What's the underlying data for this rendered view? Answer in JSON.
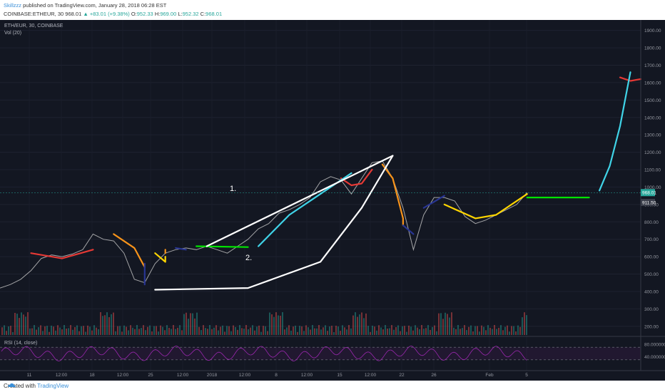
{
  "header": {
    "author": "Skillzzz",
    "published_text": "published on TradingView.com, January 28, 2018 06:28 EST",
    "symbol_line": "COINBASE:ETHEUR, 30",
    "price": "968.01",
    "change_arrow": "▲",
    "change": "+83.01 (+9.38%)",
    "o_label": "O:",
    "o_value": "952.33",
    "h_label": "H:",
    "h_value": "969.00",
    "l_label": "L:",
    "l_value": "952.32",
    "c_label": "C:",
    "c_value": "968.01"
  },
  "chart_panel": {
    "title": "ETH/EUR, 30, COINBASE",
    "vol_label": "Vol (20)",
    "rsi_label": "RSI (14, close)"
  },
  "annotations": {
    "label1": "1.",
    "label2": "2."
  },
  "footer": {
    "created_with": "Created with",
    "brand": "TradingView"
  },
  "colors": {
    "background": "#131722",
    "price_line": "#c8c8c8",
    "red": "#e53935",
    "orange": "#f7931a",
    "blue": "#283593",
    "yellow": "#ffd600",
    "green": "#00e400",
    "cyan": "#40d4e8",
    "white": "#ffffff",
    "rsi": "#9c27b0",
    "price_label": "#26a69a"
  },
  "chart_data": {
    "type": "line",
    "title": "ETH/EUR, 30, COINBASE",
    "y_axis": {
      "ticks": [
        200,
        300,
        400,
        500,
        600,
        700,
        800,
        900,
        1000,
        1100,
        1200,
        1300,
        1400,
        1500,
        1600,
        1700,
        1800,
        1900
      ],
      "range": [
        150,
        1960
      ],
      "scale": "linear"
    },
    "x_axis": {
      "ticks": [
        "11",
        "12:00",
        "18",
        "12:00",
        "25",
        "12:00",
        "2018",
        "12:00",
        "8",
        "12:00",
        "15",
        "12:00",
        "22",
        "26",
        "Feb",
        "5"
      ],
      "range": [
        "2017-12-08",
        "2018-02-08"
      ]
    },
    "current_price_label": "968.01",
    "second_price_label": "911.50",
    "price_series": {
      "name": "ETH/EUR",
      "x": [
        "2017-12-08",
        "2017-12-09",
        "2017-12-10",
        "2017-12-11",
        "2017-12-12",
        "2017-12-13",
        "2017-12-14",
        "2017-12-15",
        "2017-12-16",
        "2017-12-17",
        "2017-12-18",
        "2017-12-19",
        "2017-12-20",
        "2017-12-21",
        "2017-12-22",
        "2017-12-23",
        "2017-12-24",
        "2017-12-25",
        "2017-12-26",
        "2017-12-27",
        "2017-12-28",
        "2017-12-29",
        "2017-12-30",
        "2017-12-31",
        "2018-01-01",
        "2018-01-02",
        "2018-01-03",
        "2018-01-04",
        "2018-01-05",
        "2018-01-06",
        "2018-01-07",
        "2018-01-08",
        "2018-01-09",
        "2018-01-10",
        "2018-01-11",
        "2018-01-12",
        "2018-01-13",
        "2018-01-14",
        "2018-01-15",
        "2018-01-16",
        "2018-01-17",
        "2018-01-18",
        "2018-01-19",
        "2018-01-20",
        "2018-01-21",
        "2018-01-22",
        "2018-01-23",
        "2018-01-24",
        "2018-01-25",
        "2018-01-26",
        "2018-01-27",
        "2018-01-28"
      ],
      "y": [
        420,
        440,
        470,
        520,
        590,
        610,
        600,
        615,
        640,
        730,
        700,
        690,
        620,
        470,
        450,
        560,
        620,
        640,
        650,
        640,
        660,
        640,
        620,
        660,
        700,
        760,
        790,
        850,
        870,
        900,
        940,
        1030,
        1060,
        1040,
        960,
        1050,
        1140,
        1150,
        1050,
        880,
        640,
        840,
        940,
        940,
        920,
        830,
        790,
        810,
        840,
        870,
        900,
        968
      ]
    },
    "volume_series": {
      "name": "Vol (20)"
    },
    "rsi": {
      "name": "RSI (14, close)",
      "levels": [
        70,
        30
      ],
      "ticks": [
        80,
        40
      ]
    },
    "drawings": [
      {
        "color": "red",
        "points": [
          [
            "2017-12-11",
            620
          ],
          [
            "2017-12-14",
            590
          ],
          [
            "2017-12-17",
            640
          ]
        ]
      },
      {
        "color": "red",
        "points": [
          [
            "2018-01-10",
            1050
          ],
          [
            "2018-01-11",
            1010
          ],
          [
            "2018-01-12",
            1020
          ],
          [
            "2018-01-13",
            1100
          ]
        ]
      },
      {
        "color": "red",
        "points": [
          [
            "2018-02-06",
            1630
          ],
          [
            "2018-02-07",
            1610
          ],
          [
            "2018-02-08",
            1620
          ]
        ]
      },
      {
        "color": "orange",
        "points": [
          [
            "2017-12-19",
            730
          ],
          [
            "2017-12-21",
            650
          ],
          [
            "2017-12-22",
            540
          ]
        ]
      },
      {
        "color": "orange",
        "points": [
          [
            "2017-12-24",
            620
          ],
          [
            "2017-12-24",
            640
          ]
        ]
      },
      {
        "color": "orange",
        "points": [
          [
            "2018-01-14",
            1130
          ],
          [
            "2018-01-15",
            1050
          ],
          [
            "2018-01-16",
            820
          ],
          [
            "2018-01-16",
            780
          ]
        ]
      },
      {
        "color": "blue",
        "points": [
          [
            "2017-12-22",
            560
          ],
          [
            "2017-12-22",
            440
          ]
        ]
      },
      {
        "color": "blue",
        "points": [
          [
            "2017-12-25",
            650
          ],
          [
            "2017-12-26",
            640
          ]
        ]
      },
      {
        "color": "blue",
        "points": [
          [
            "2018-01-16",
            780
          ],
          [
            "2018-01-17",
            730
          ]
        ]
      },
      {
        "color": "blue",
        "points": [
          [
            "2018-01-18",
            880
          ],
          [
            "2018-01-20",
            950
          ]
        ]
      },
      {
        "color": "yellow",
        "points": [
          [
            "2017-12-23",
            620
          ],
          [
            "2017-12-24",
            570
          ],
          [
            "2017-12-24",
            600
          ]
        ]
      },
      {
        "color": "yellow",
        "points": [
          [
            "2018-01-20",
            900
          ],
          [
            "2018-01-23",
            820
          ],
          [
            "2018-01-25",
            840
          ],
          [
            "2018-01-28",
            960
          ]
        ]
      },
      {
        "color": "green",
        "points": [
          [
            "2017-12-27",
            660
          ],
          [
            "2018-01-01",
            655
          ]
        ]
      },
      {
        "color": "green",
        "points": [
          [
            "2018-01-28",
            940
          ],
          [
            "2018-02-03",
            940
          ]
        ]
      },
      {
        "color": "cyan",
        "points": [
          [
            "2018-01-02",
            660
          ],
          [
            "2018-01-05",
            840
          ],
          [
            "2018-01-08",
            960
          ],
          [
            "2018-01-11",
            1080
          ]
        ]
      },
      {
        "color": "cyan",
        "points": [
          [
            "2018-02-04",
            980
          ],
          [
            "2018-02-05",
            1120
          ],
          [
            "2018-02-06",
            1350
          ],
          [
            "2018-02-07",
            1660
          ]
        ]
      },
      {
        "color": "white",
        "points": [
          [
            "2017-12-28",
            660
          ],
          [
            "2018-01-15",
            1180
          ]
        ]
      },
      {
        "color": "white",
        "points": [
          [
            "2017-12-23",
            410
          ],
          [
            "2018-01-01",
            420
          ],
          [
            "2018-01-08",
            570
          ],
          [
            "2018-01-12",
            880
          ],
          [
            "2018-01-15",
            1180
          ]
        ]
      }
    ]
  }
}
